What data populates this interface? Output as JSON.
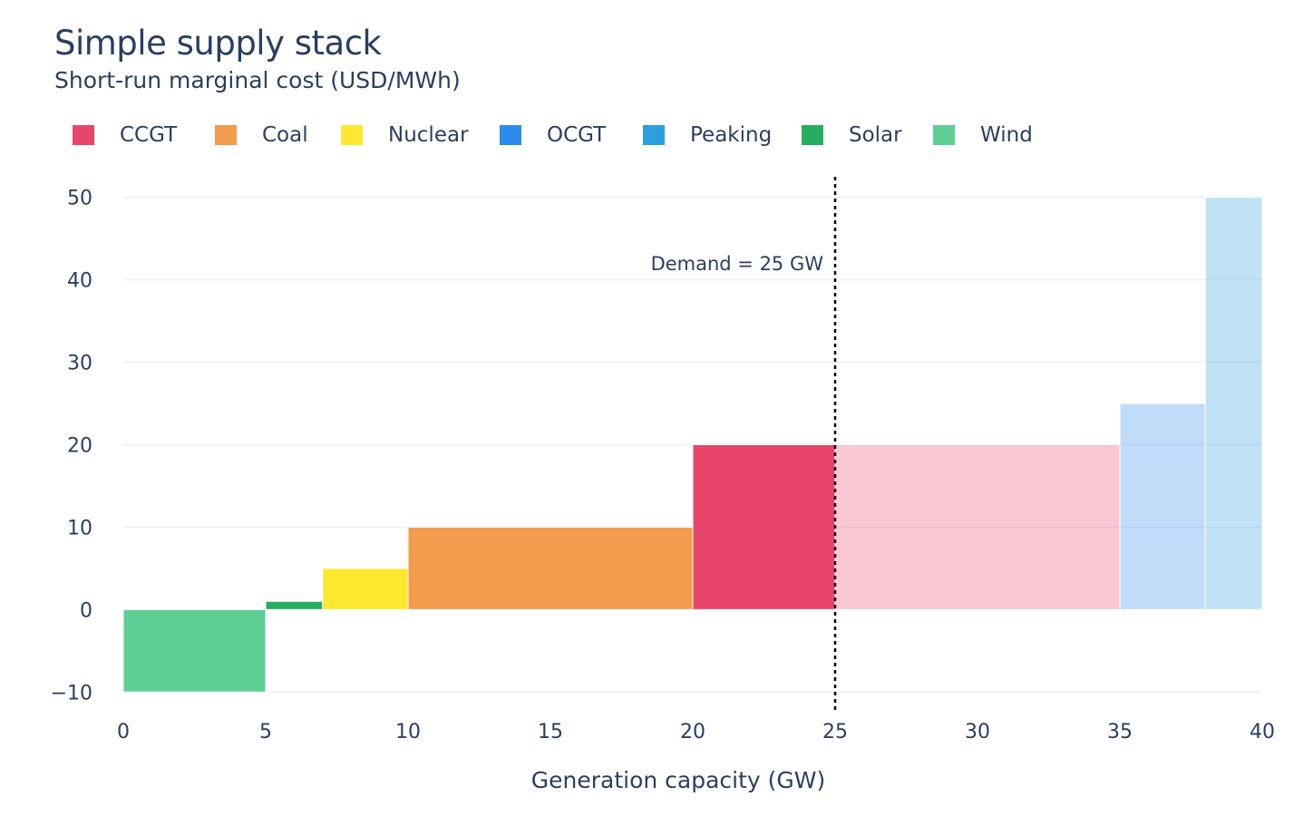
{
  "chart_data": {
    "type": "bar",
    "title": "Simple supply stack",
    "subtitle": "Short-run marginal cost (USD/MWh)",
    "xlabel": "Generation capacity (GW)",
    "ylabel": "",
    "xlim": [
      0,
      40
    ],
    "ylim": [
      -12.5,
      52.5
    ],
    "xticks": [
      0,
      5,
      10,
      15,
      20,
      25,
      30,
      35,
      40
    ],
    "yticks": [
      -10,
      0,
      10,
      20,
      30,
      40,
      50
    ],
    "ytick_labels": [
      "−10",
      "0",
      "10",
      "20",
      "30",
      "40",
      "50"
    ],
    "grid": true,
    "legend": [
      {
        "name": "CCGT",
        "color": "#e8456a"
      },
      {
        "name": "Coal",
        "color": "#f29b4c"
      },
      {
        "name": "Nuclear",
        "color": "#fce82f"
      },
      {
        "name": "OCGT",
        "color": "#2e8bec"
      },
      {
        "name": "Peaking",
        "color": "#2d9fdf"
      },
      {
        "name": "Solar",
        "color": "#26ad60"
      },
      {
        "name": "Wind",
        "color": "#5ecf94"
      }
    ],
    "series": [
      {
        "name": "Wind",
        "x0": 0,
        "x1": 5,
        "value": -10,
        "dispatched": true
      },
      {
        "name": "Solar",
        "x0": 5,
        "x1": 7,
        "value": 1,
        "dispatched": true
      },
      {
        "name": "Nuclear",
        "x0": 7,
        "x1": 10,
        "value": 5,
        "dispatched": true
      },
      {
        "name": "Coal",
        "x0": 10,
        "x1": 20,
        "value": 10,
        "dispatched": true
      },
      {
        "name": "CCGT",
        "x0": 20,
        "x1": 25,
        "value": 20,
        "dispatched": true
      },
      {
        "name": "CCGT",
        "x0": 25,
        "x1": 35,
        "value": 20,
        "dispatched": false
      },
      {
        "name": "OCGT",
        "x0": 35,
        "x1": 38,
        "value": 25,
        "dispatched": false
      },
      {
        "name": "Peaking",
        "x0": 38,
        "x1": 40,
        "value": 50,
        "dispatched": false
      }
    ],
    "demand": {
      "x": 25,
      "label": "Demand = 25 GW"
    }
  }
}
